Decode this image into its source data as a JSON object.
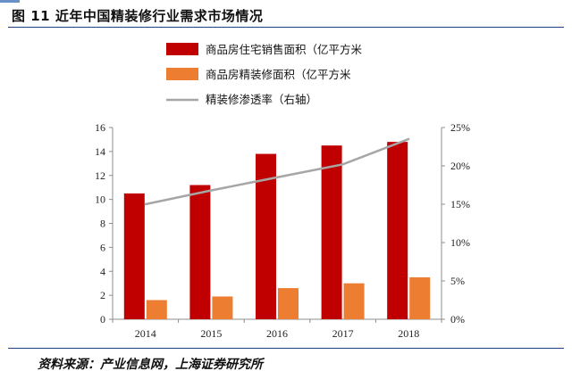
{
  "title": "图 11 近年中国精装修行业需求市场情况",
  "source": "资料来源：产业信息网，上海证券研究所",
  "chart_data": {
    "type": "bar",
    "title": "图 11 近年中国精装修行业需求市场情况",
    "categories": [
      "2014",
      "2015",
      "2016",
      "2017",
      "2018"
    ],
    "series": [
      {
        "name": "商品房住宅销售面积（亿平方米",
        "type": "bar",
        "axis": "left",
        "color": "#c00000",
        "values": [
          10.5,
          11.2,
          13.8,
          14.5,
          14.8
        ]
      },
      {
        "name": "商品房精装修面积（亿平方米",
        "type": "bar",
        "axis": "left",
        "color": "#ed7d31",
        "values": [
          1.6,
          1.9,
          2.6,
          3.0,
          3.5
        ]
      },
      {
        "name": "精装修渗透率（右轴）",
        "type": "line",
        "axis": "right",
        "color": "#a6a6a6",
        "values": [
          15.0,
          16.8,
          18.5,
          20.2,
          23.5
        ]
      }
    ],
    "y_left": {
      "ylim": [
        0,
        16
      ],
      "ticks": [
        "0",
        "2",
        "4",
        "6",
        "8",
        "10",
        "12",
        "14",
        "16"
      ]
    },
    "y_right": {
      "ylim": [
        0,
        25
      ],
      "unit": "%",
      "ticks": [
        "0%",
        "5%",
        "10%",
        "15%",
        "20%",
        "25%"
      ]
    },
    "legend_position": "top-center",
    "grid": false
  }
}
